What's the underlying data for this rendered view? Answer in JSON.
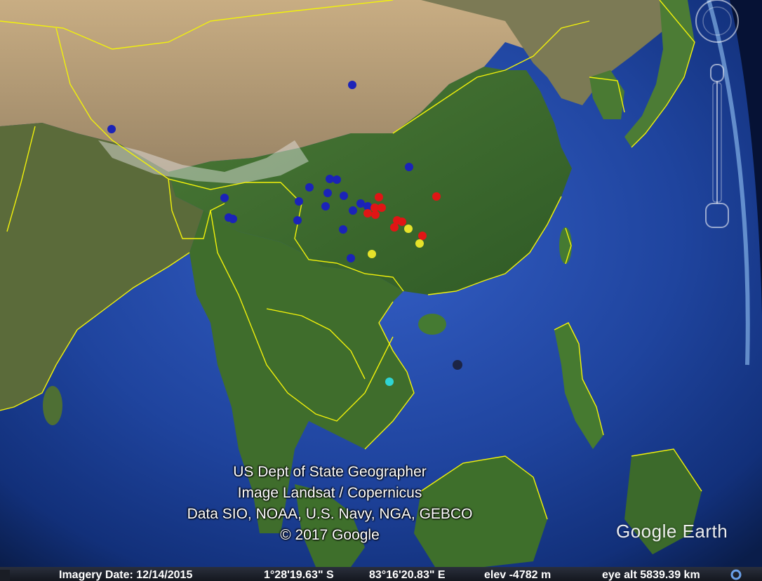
{
  "attribution": {
    "line1": "US Dept of State Geographer",
    "line2": "Image Landsat / Copernicus",
    "line3": "Data SIO, NOAA, U.S. Navy, NGA, GEBCO",
    "line4": "© 2017 Google"
  },
  "brand": {
    "google": "Google",
    "earth": " Earth"
  },
  "status": {
    "imagery_date": "Imagery Date: 12/14/2015",
    "lat": "1°28'19.63\" S",
    "lon": "83°16'20.83\" E",
    "elev": "elev -4782 m",
    "eye_alt": "eye alt 5839.39 km"
  },
  "colors": {
    "ocean_deep": "#0f2f7a",
    "ocean_shallow": "#3a62c4",
    "land_green": "#3d6b2e",
    "land_desert": "#b59a72",
    "border_yellow": "#f2f20a",
    "marker_blue": "#1b23b8",
    "marker_red": "#e01515",
    "marker_yellow": "#e6e22a",
    "marker_cyan": "#2fd4d4"
  },
  "icons": [
    "look-joystick-icon",
    "zoom-slider-icon",
    "search-magnifier-icon"
  ]
}
